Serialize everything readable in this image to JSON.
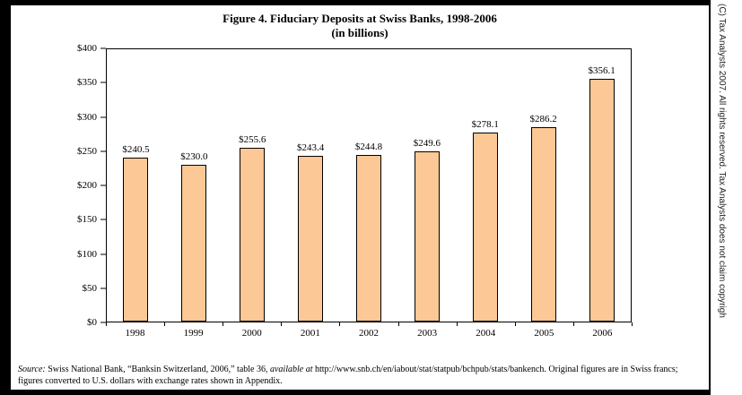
{
  "chart_data": {
    "type": "bar",
    "title": "Figure 4. Fiduciary Deposits at Swiss Banks, 1998-2006",
    "subtitle": "(in billions)",
    "categories": [
      "1998",
      "1999",
      "2000",
      "2001",
      "2002",
      "2003",
      "2004",
      "2005",
      "2006"
    ],
    "values": [
      240.5,
      230.0,
      255.6,
      243.4,
      244.8,
      249.6,
      278.1,
      286.2,
      356.1
    ],
    "value_labels": [
      "$240.5",
      "$230.0",
      "$255.6",
      "$243.4",
      "$244.8",
      "$249.6",
      "$278.1",
      "$286.2",
      "$356.1"
    ],
    "ylim": [
      0,
      400
    ],
    "y_ticks": [
      "$0",
      "$50",
      "$100",
      "$150",
      "$200",
      "$250",
      "$300",
      "$350",
      "$400"
    ],
    "grid": false,
    "legend": "none",
    "bar_color": "#FBC896",
    "bar_border_color": "#000000"
  },
  "footnote": {
    "label": "Source:",
    "text_before": " Swiss National Bank, “Banksin Switzerland, 2006,” table 36, ",
    "available_at": "available at",
    "text_after": " http://www.snb.ch/en/iabout/stat/statpub/bchpub/stats/bankench. Original figures are in Swiss francs; figures converted to U.S. dollars with exchange rates shown in Appendix."
  },
  "copyright": {
    "text": "(C) Tax Analysts 2007. All rights reserved. Tax Analysts does not claim copyrigh"
  }
}
